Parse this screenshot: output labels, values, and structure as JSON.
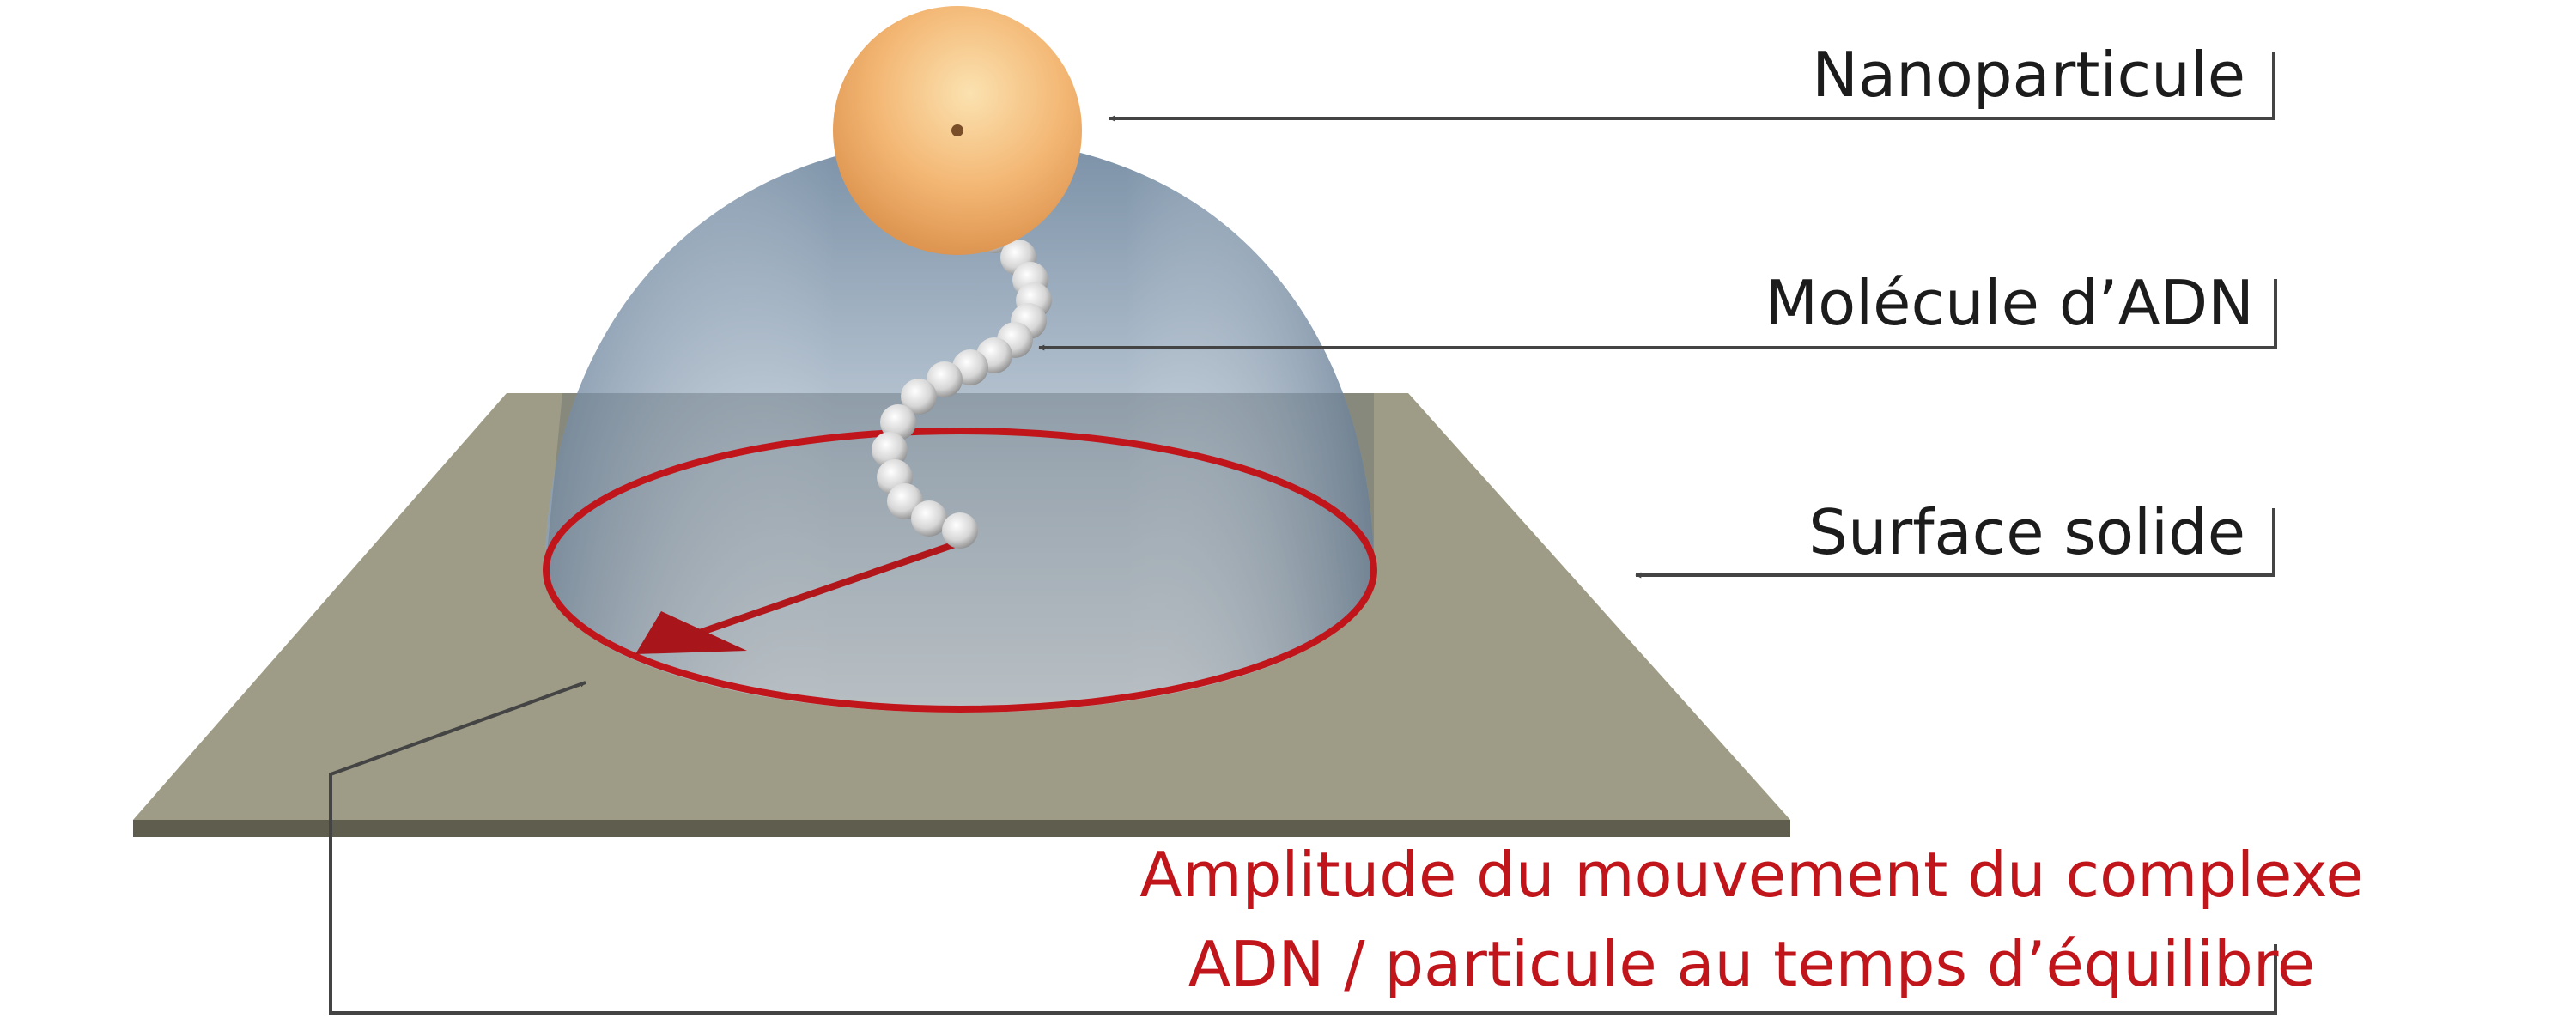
{
  "labels": {
    "nanoparticle": "Nanoparticule",
    "dna_molecule": "Molécule d’ADN",
    "solid_surface": "Surface solide",
    "amplitude_line1": "Amplitude du mouvement du complexe",
    "amplitude_line2": "ADN / particule au temps d’équilibre"
  },
  "colors": {
    "label_text": "#1c1c1c",
    "amplitude_text": "#c0161b",
    "surface": "#9e9c86",
    "surface_edge": "#5e5d4e",
    "dome": "#7e95ab",
    "nanoparticle": "#f2b574",
    "dna_bead": "#d8d8d8",
    "amplitude_circle": "#c0161b",
    "pointer": "#444444"
  }
}
